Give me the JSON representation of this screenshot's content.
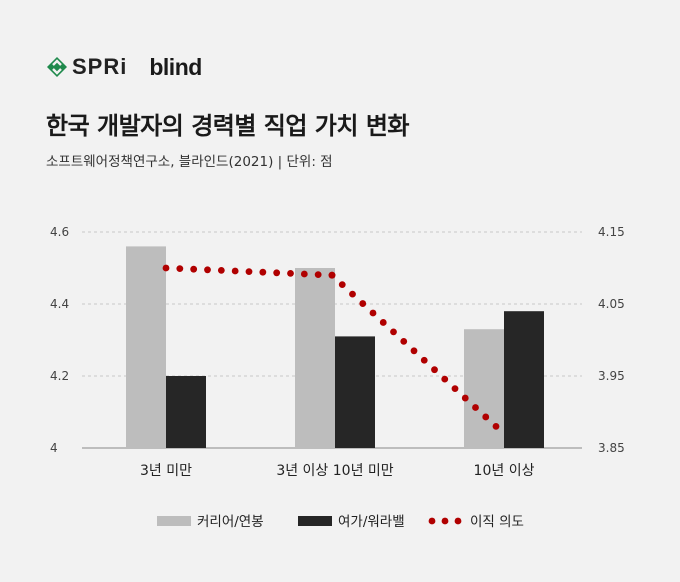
{
  "logos": {
    "spri": "SPRi",
    "blind": "blind"
  },
  "title": "한국 개발자의 경력별 직업 가치 변화",
  "subtitle": "소프트웨어정책연구소, 블라인드(2021)  |  단위: 점",
  "colors": {
    "career_salary": "#bdbdbd",
    "leisure_balance": "#262626",
    "turnover": "#b00000",
    "background": "#f2f2f2",
    "logo_green": "#1f8a4c"
  },
  "chart_data": {
    "type": "bar",
    "categories": [
      "3년 미만",
      "3년 이상 10년 미만",
      "10년 이상"
    ],
    "series": [
      {
        "name": "커리어/연봉",
        "type": "bar",
        "axis": "left",
        "values": [
          4.56,
          4.5,
          4.33
        ]
      },
      {
        "name": "여가/워라밸",
        "type": "bar",
        "axis": "left",
        "values": [
          4.2,
          4.31,
          4.38
        ]
      },
      {
        "name": "이직 의도",
        "type": "dotted-line",
        "axis": "right",
        "values": [
          4.1,
          4.09,
          3.88
        ]
      }
    ],
    "y_left": {
      "ticks": [
        "4.6",
        "4.4",
        "4.2",
        "4"
      ],
      "ylim": [
        4.0,
        4.6
      ]
    },
    "y_right": {
      "ticks": [
        "4.15",
        "4.05",
        "3.95",
        "3.85"
      ],
      "ylim": [
        3.85,
        4.15
      ]
    },
    "grid": "dashed-horizontal",
    "legend": "bottom-center"
  }
}
